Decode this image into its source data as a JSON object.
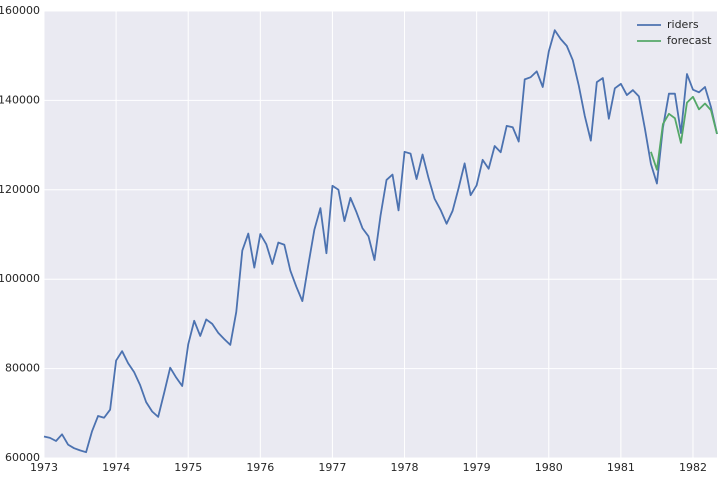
{
  "chart_data": {
    "type": "line",
    "x": [
      1973,
      1973.0833,
      1973.1667,
      1973.25,
      1973.3333,
      1973.4167,
      1973.5,
      1973.5833,
      1973.6667,
      1973.75,
      1973.8333,
      1973.9167,
      1974,
      1974.0833,
      1974.1667,
      1974.25,
      1974.3333,
      1974.4167,
      1974.5,
      1974.5833,
      1974.6667,
      1974.75,
      1974.8333,
      1974.9167,
      1975,
      1975.0833,
      1975.1667,
      1975.25,
      1975.3333,
      1975.4167,
      1975.5,
      1975.5833,
      1975.6667,
      1975.75,
      1975.8333,
      1975.9167,
      1976,
      1976.0833,
      1976.1667,
      1976.25,
      1976.3333,
      1976.4167,
      1976.5,
      1976.5833,
      1976.6667,
      1976.75,
      1976.8333,
      1976.9167,
      1977,
      1977.0833,
      1977.1667,
      1977.25,
      1977.3333,
      1977.4167,
      1977.5,
      1977.5833,
      1977.6667,
      1977.75,
      1977.8333,
      1977.9167,
      1978,
      1978.0833,
      1978.1667,
      1978.25,
      1978.3333,
      1978.4167,
      1978.5,
      1978.5833,
      1978.6667,
      1978.75,
      1978.8333,
      1978.9167,
      1979,
      1979.0833,
      1979.1667,
      1979.25,
      1979.3333,
      1979.4167,
      1979.5,
      1979.5833,
      1979.6667,
      1979.75,
      1979.8333,
      1979.9167,
      1980,
      1980.0833,
      1980.1667,
      1980.25,
      1980.3333,
      1980.4167,
      1980.5,
      1980.5833,
      1980.6667,
      1980.75,
      1980.8333,
      1980.9167,
      1981,
      1981.0833,
      1981.1667,
      1981.25,
      1981.3333,
      1981.4167,
      1981.5,
      1981.5833,
      1981.6667,
      1981.75,
      1981.8333,
      1981.9167,
      1982,
      1982.0833,
      1982.1667,
      1982.25,
      1982.3333
    ],
    "series": [
      {
        "name": "riders",
        "color": "#4c72b0",
        "values": [
          64800,
          64500,
          63800,
          65300,
          63000,
          62200,
          61700,
          61300,
          66000,
          69400,
          69000,
          70800,
          81800,
          83900,
          81200,
          79200,
          76300,
          72500,
          70400,
          69200,
          74600,
          80200,
          78000,
          76100,
          85400,
          90700,
          87300,
          91000,
          90000,
          88000,
          86600,
          85300,
          92700,
          106400,
          110200,
          102600,
          110100,
          107800,
          103400,
          108200,
          107700,
          101900,
          98300,
          95100,
          103300,
          111100,
          115900,
          105800,
          120900,
          120000,
          113000,
          118200,
          115000,
          111400,
          109600,
          104300,
          114200,
          122200,
          123400,
          115400,
          128500,
          128100,
          122400,
          127900,
          122600,
          118000,
          115500,
          112400,
          115300,
          120400,
          125900,
          118800,
          121000,
          126700,
          124700,
          129800,
          128400,
          134300,
          134000,
          130800,
          144700,
          145200,
          146500,
          143000,
          150900,
          155700,
          153700,
          152200,
          149000,
          143300,
          136500,
          131000,
          144100,
          145000,
          135900,
          142700,
          143700,
          141200,
          142300,
          140900,
          133700,
          125800,
          121400,
          133900,
          141500,
          141500,
          132700,
          145900,
          142400,
          141800,
          143000,
          138500,
          132500
        ]
      },
      {
        "name": "forecast",
        "color": "#55a868",
        "values": [
          null,
          null,
          null,
          null,
          null,
          null,
          null,
          null,
          null,
          null,
          null,
          null,
          null,
          null,
          null,
          null,
          null,
          null,
          null,
          null,
          null,
          null,
          null,
          null,
          null,
          null,
          null,
          null,
          null,
          null,
          null,
          null,
          null,
          null,
          null,
          null,
          null,
          null,
          null,
          null,
          null,
          null,
          null,
          null,
          null,
          null,
          null,
          null,
          null,
          null,
          null,
          null,
          null,
          null,
          null,
          null,
          null,
          null,
          null,
          null,
          null,
          null,
          null,
          null,
          null,
          null,
          null,
          null,
          null,
          null,
          null,
          null,
          null,
          null,
          null,
          null,
          null,
          null,
          null,
          null,
          null,
          null,
          null,
          null,
          null,
          null,
          null,
          null,
          null,
          null,
          null,
          null,
          null,
          null,
          null,
          null,
          null,
          null,
          null,
          null,
          null,
          128500,
          124500,
          134700,
          137000,
          136000,
          130500,
          139500,
          140800,
          138000,
          139300,
          137800,
          132500
        ]
      }
    ],
    "xlim": [
      1973,
      1982.3333
    ],
    "xticks": [
      1973,
      1974,
      1975,
      1976,
      1977,
      1978,
      1979,
      1980,
      1981,
      1982
    ],
    "ylim": [
      60000,
      160000
    ],
    "yticks": [
      60000,
      80000,
      100000,
      120000,
      140000,
      160000
    ],
    "grid": true,
    "legend": "upper right"
  }
}
